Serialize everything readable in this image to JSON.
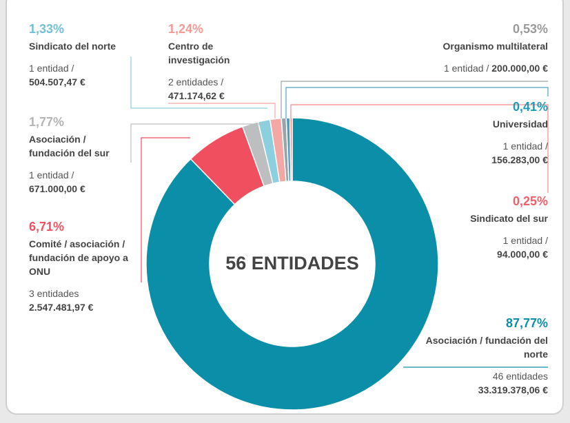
{
  "chart_data": {
    "type": "donut",
    "center_label": "56 ENTIDADES",
    "categories": [
      "Asociación / fundación del norte",
      "Comité / asociación / fundación de apoyo a ONU",
      "Asociación / fundación del sur",
      "Sindicato del norte",
      "Centro de investigación",
      "Organismo multilateral",
      "Universidad",
      "Sindicato del sur"
    ],
    "values": [
      87.77,
      6.71,
      1.77,
      1.33,
      1.24,
      0.53,
      0.41,
      0.25
    ],
    "value_labels": [
      "87,77%",
      "6,71%",
      "1,77%",
      "1,33%",
      "1,24%",
      "0,53%",
      "0,41%",
      "0,25%"
    ],
    "entities": [
      "46 entidades",
      "3 entidades",
      "1 entidad /",
      "1 entidad /",
      "2 entidades /",
      "1 entidad /",
      "1 entidad /",
      "1 entidad /"
    ],
    "amounts": [
      "33.319.378,06 €",
      "2.547.481,97 €",
      "671.000,00 €",
      "504.507,47 €",
      "471.174,62 €",
      "200.000,00 €",
      "156.283,00 €",
      "94.000,00 €"
    ],
    "colors": [
      "#0b8fa8",
      "#ef4f5e",
      "#bcbec0",
      "#8ccfdf",
      "#f4a8a6",
      "#9aa3a8",
      "#4f9fc0",
      "#f08b8b"
    ],
    "label_colors": [
      "#0b8fa8",
      "#ef4f5e",
      "#b5b5b5",
      "#6fc0d8",
      "#f59a94",
      "#999999",
      "#1a9cb8",
      "#f0606a"
    ]
  }
}
